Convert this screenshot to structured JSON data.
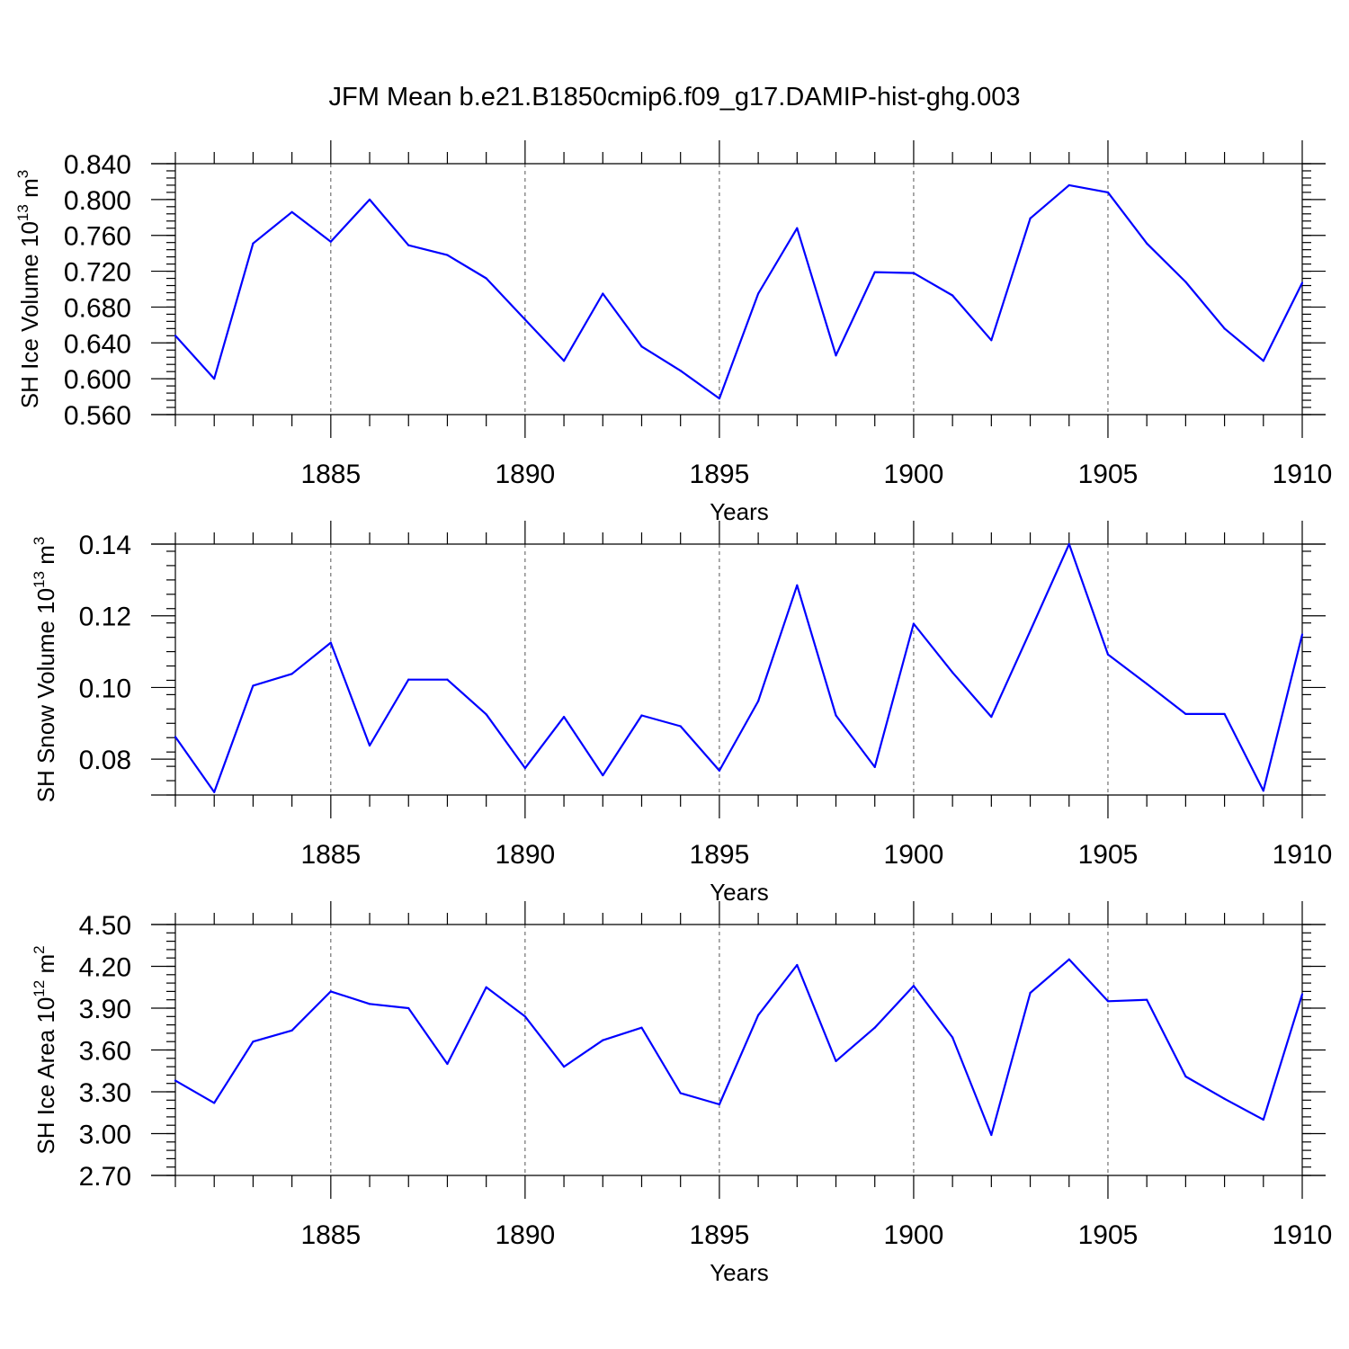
{
  "title": "JFM Mean b.e21.B1850cmip6.f09_g17.DAMIP-hist-ghg.003",
  "chart_data": [
    {
      "type": "line",
      "name": "ice-volume",
      "ylabel_main": "SH Ice Volume 10",
      "ylabel_exp": "13",
      "ylabel_unit": " m",
      "ylabel_unit_exp": "3",
      "xlabel": "Years",
      "xlim": [
        1881,
        1910
      ],
      "ylim": [
        0.56,
        0.84
      ],
      "yticks": [
        0.56,
        0.6,
        0.64,
        0.68,
        0.72,
        0.76,
        0.8,
        0.84
      ],
      "ytick_labels": [
        "0.560",
        "0.600",
        "0.640",
        "0.680",
        "0.720",
        "0.760",
        "0.800",
        "0.840"
      ],
      "xticks": [
        1885,
        1890,
        1895,
        1900,
        1905,
        1910
      ],
      "xtick_labels": [
        "1885",
        "1890",
        "1895",
        "1900",
        "1905",
        "1910"
      ],
      "x": [
        1881,
        1882,
        1883,
        1884,
        1885,
        1886,
        1887,
        1888,
        1889,
        1890,
        1891,
        1892,
        1893,
        1894,
        1895,
        1896,
        1897,
        1898,
        1899,
        1900,
        1901,
        1902,
        1903,
        1904,
        1905,
        1906,
        1907,
        1908,
        1909,
        1910
      ],
      "values": [
        0.648,
        0.6,
        0.751,
        0.786,
        0.753,
        0.8,
        0.749,
        0.738,
        0.712,
        0.666,
        0.62,
        0.695,
        0.636,
        0.609,
        0.578,
        0.695,
        0.768,
        0.626,
        0.719,
        0.718,
        0.693,
        0.643,
        0.779,
        0.816,
        0.808,
        0.751,
        0.708,
        0.656,
        0.62,
        0.707
      ],
      "color": "#0000ff"
    },
    {
      "type": "line",
      "name": "snow-volume",
      "ylabel_main": "SH Snow Volume 10",
      "ylabel_exp": "13",
      "ylabel_unit": " m",
      "ylabel_unit_exp": "3",
      "xlabel": "Years",
      "xlim": [
        1881,
        1910
      ],
      "ylim": [
        0.07,
        0.14
      ],
      "yticks": [
        0.08,
        0.1,
        0.12,
        0.14
      ],
      "ytick_labels": [
        "0.08",
        "0.10",
        "0.12",
        "0.14"
      ],
      "xticks": [
        1885,
        1890,
        1895,
        1900,
        1905,
        1910
      ],
      "xtick_labels": [
        "1885",
        "1890",
        "1895",
        "1900",
        "1905",
        "1910"
      ],
      "x": [
        1881,
        1882,
        1883,
        1884,
        1885,
        1886,
        1887,
        1888,
        1889,
        1890,
        1891,
        1892,
        1893,
        1894,
        1895,
        1896,
        1897,
        1898,
        1899,
        1900,
        1901,
        1902,
        1903,
        1904,
        1905,
        1906,
        1907,
        1908,
        1909,
        1910
      ],
      "values": [
        0.0862,
        0.0708,
        0.1005,
        0.1038,
        0.1125,
        0.0838,
        0.1022,
        0.1022,
        0.0925,
        0.0775,
        0.0918,
        0.0755,
        0.0922,
        0.0892,
        0.0768,
        0.0962,
        0.1285,
        0.0922,
        0.0778,
        0.1178,
        0.1042,
        0.0918,
        0.1158,
        0.14,
        0.1092,
        0.101,
        0.0926,
        0.0926,
        0.0712,
        0.1148
      ],
      "color": "#0000ff"
    },
    {
      "type": "line",
      "name": "ice-area",
      "ylabel_main": "SH Ice Area 10",
      "ylabel_exp": "12",
      "ylabel_unit": " m",
      "ylabel_unit_exp": "2",
      "xlabel": "Years",
      "xlim": [
        1881,
        1910
      ],
      "ylim": [
        2.7,
        4.5
      ],
      "yticks": [
        2.7,
        3.0,
        3.3,
        3.6,
        3.9,
        4.2,
        4.5
      ],
      "ytick_labels": [
        "2.70",
        "3.00",
        "3.30",
        "3.60",
        "3.90",
        "4.20",
        "4.50"
      ],
      "xticks": [
        1885,
        1890,
        1895,
        1900,
        1905,
        1910
      ],
      "xtick_labels": [
        "1885",
        "1890",
        "1895",
        "1900",
        "1905",
        "1910"
      ],
      "x": [
        1881,
        1882,
        1883,
        1884,
        1885,
        1886,
        1887,
        1888,
        1889,
        1890,
        1891,
        1892,
        1893,
        1894,
        1895,
        1896,
        1897,
        1898,
        1899,
        1900,
        1901,
        1902,
        1903,
        1904,
        1905,
        1906,
        1907,
        1908,
        1909,
        1910
      ],
      "values": [
        3.38,
        3.22,
        3.66,
        3.74,
        4.02,
        3.93,
        3.9,
        3.5,
        4.05,
        3.84,
        3.48,
        3.67,
        3.76,
        3.29,
        3.21,
        3.85,
        4.21,
        3.52,
        3.76,
        4.06,
        3.69,
        2.99,
        4.01,
        4.25,
        3.95,
        3.96,
        3.41,
        3.25,
        3.1,
        4.0
      ],
      "color": "#0000ff"
    }
  ]
}
